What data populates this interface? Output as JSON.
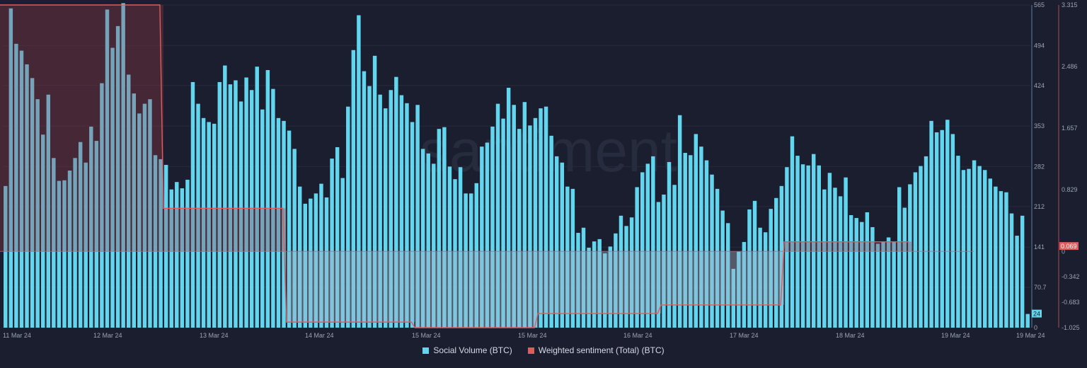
{
  "chart_data": {
    "type": "bar",
    "watermark": "santiment",
    "x_ticks": [
      "11 Mar 24",
      "12 Mar 24",
      "13 Mar 24",
      "14 Mar 24",
      "15 Mar 24",
      "15 Mar 24",
      "16 Mar 24",
      "17 Mar 24",
      "18 Mar 24",
      "19 Mar 24",
      "19 Mar 24"
    ],
    "y_left_ticks": [
      "565",
      "494",
      "424",
      "353",
      "282",
      "212",
      "141",
      "70.7",
      "0"
    ],
    "y_right_ticks": [
      "3.315",
      "2.486",
      "1.657",
      "0.829",
      "0",
      "-0.342",
      "-0.683",
      "-1.025"
    ],
    "ylim_left": [
      0,
      565
    ],
    "ylim_right": [
      -1.025,
      3.315
    ],
    "last_value_left": "24",
    "last_value_right": "0.069",
    "colors": {
      "volume": "#62d5ef",
      "sentiment": "#e05c5c",
      "background": "#1b1e2e"
    },
    "series": [
      {
        "name": "Social Volume (BTC)",
        "axis": "left",
        "values": [
          248,
          559,
          497,
          485,
          461,
          437,
          400,
          338,
          408,
          297,
          257,
          258,
          275,
          297,
          325,
          289,
          352,
          327,
          428,
          557,
          490,
          528,
          568,
          443,
          410,
          375,
          392,
          400,
          302,
          295,
          285,
          242,
          255,
          244,
          259,
          430,
          392,
          367,
          360,
          357,
          430,
          459,
          426,
          433,
          396,
          438,
          416,
          457,
          382,
          451,
          418,
          367,
          362,
          345,
          313,
          247,
          217,
          226,
          235,
          252,
          228,
          296,
          316,
          262,
          387,
          486,
          547,
          449,
          423,
          476,
          408,
          384,
          416,
          439,
          407,
          393,
          360,
          390,
          313,
          305,
          287,
          348,
          351,
          282,
          260,
          281,
          235,
          235,
          253,
          317,
          324,
          352,
          392,
          366,
          420,
          390,
          348,
          395,
          354,
          367,
          384,
          387,
          336,
          300,
          289,
          247,
          243,
          166,
          175,
          140,
          151,
          155,
          130,
          142,
          165,
          196,
          178,
          193,
          246,
          272,
          287,
          300,
          220,
          233,
          290,
          250,
          372,
          306,
          302,
          339,
          317,
          293,
          268,
          243,
          205,
          183,
          103,
          133,
          150,
          207,
          222,
          175,
          167,
          208,
          227,
          248,
          281,
          335,
          301,
          286,
          284,
          304,
          284,
          242,
          271,
          245,
          230,
          263,
          197,
          192,
          185,
          202,
          176,
          147,
          151,
          158,
          150,
          246,
          210,
          251,
          272,
          283,
          300,
          362,
          342,
          346,
          364,
          339,
          301,
          276,
          278,
          293,
          283,
          276,
          261,
          247,
          239,
          237,
          200,
          161,
          196,
          24
        ]
      },
      {
        "name": "Weighted sentiment (Total) (BTC)",
        "axis": "right",
        "segments": [
          {
            "from": 0,
            "to": 29,
            "value": 3.315
          },
          {
            "from": 30,
            "to": 52,
            "value": 0.58
          },
          {
            "from": 53,
            "to": 76,
            "value": -0.95
          },
          {
            "from": 77,
            "to": 99,
            "value": -1.025
          },
          {
            "from": 100,
            "to": 122,
            "value": -0.835
          },
          {
            "from": 123,
            "to": 145,
            "value": -0.72
          },
          {
            "from": 146,
            "to": 169,
            "value": 0.13
          }
        ]
      }
    ]
  }
}
